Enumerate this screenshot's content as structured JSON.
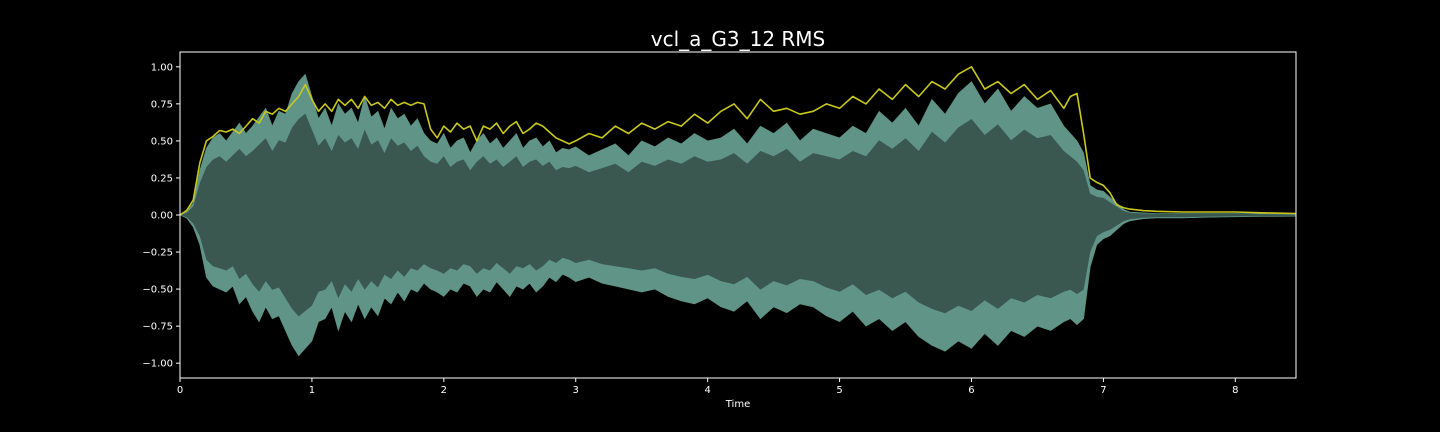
{
  "chart_data": {
    "type": "line",
    "title": "vcl_a_G3_12 RMS",
    "xlabel": "Time",
    "ylabel": "",
    "xlim": [
      0,
      8.46
    ],
    "ylim": [
      -1.1,
      1.1
    ],
    "x_ticks": [
      {
        "value": 0,
        "label": "0"
      },
      {
        "value": 1,
        "label": "1"
      },
      {
        "value": 2,
        "label": "2"
      },
      {
        "value": 3,
        "label": "3"
      },
      {
        "value": 4,
        "label": "4"
      },
      {
        "value": 5,
        "label": "5"
      },
      {
        "value": 6,
        "label": "6"
      },
      {
        "value": 7,
        "label": "7"
      },
      {
        "value": 8,
        "label": "8"
      }
    ],
    "y_ticks": [
      {
        "value": 1.0,
        "label": "1.00"
      },
      {
        "value": 0.75,
        "label": "0.75"
      },
      {
        "value": 0.5,
        "label": "0.50"
      },
      {
        "value": 0.25,
        "label": "0.25"
      },
      {
        "value": 0.0,
        "label": "0.00"
      },
      {
        "value": -0.25,
        "label": "−0.25"
      },
      {
        "value": -0.5,
        "label": "−0.50"
      },
      {
        "value": -0.75,
        "label": "−0.75"
      },
      {
        "value": -1.0,
        "label": "−1.00"
      }
    ],
    "grid": false,
    "colors": {
      "background": "#000000",
      "waveform_fill": "#3a5750",
      "waveform_peaks": "#5f9486",
      "rms_line": "#c8c81e",
      "axes": "#ffffff"
    },
    "series": [
      {
        "kind": "waveform_upper",
        "x": [
          0,
          0.05,
          0.1,
          0.15,
          0.2,
          0.25,
          0.3,
          0.35,
          0.4,
          0.45,
          0.5,
          0.55,
          0.6,
          0.65,
          0.7,
          0.75,
          0.8,
          0.85,
          0.9,
          0.95,
          1.0,
          1.05,
          1.1,
          1.15,
          1.2,
          1.25,
          1.3,
          1.35,
          1.4,
          1.45,
          1.5,
          1.55,
          1.6,
          1.65,
          1.7,
          1.75,
          1.8,
          1.85,
          1.9,
          1.95,
          2.0,
          2.05,
          2.1,
          2.15,
          2.2,
          2.25,
          2.3,
          2.35,
          2.4,
          2.45,
          2.5,
          2.55,
          2.6,
          2.65,
          2.7,
          2.75,
          2.8,
          2.85,
          2.9,
          2.95,
          3.0,
          3.1,
          3.2,
          3.3,
          3.4,
          3.5,
          3.6,
          3.7,
          3.8,
          3.9,
          4.0,
          4.1,
          4.2,
          4.3,
          4.4,
          4.5,
          4.6,
          4.7,
          4.8,
          4.9,
          5.0,
          5.1,
          5.2,
          5.3,
          5.4,
          5.5,
          5.6,
          5.7,
          5.8,
          5.9,
          6.0,
          6.1,
          6.2,
          6.3,
          6.4,
          6.5,
          6.6,
          6.7,
          6.75,
          6.8,
          6.85,
          6.9,
          6.95,
          7.0,
          7.05,
          7.1,
          7.15,
          7.2,
          7.3,
          7.4,
          7.6,
          7.8,
          8.0,
          8.2,
          8.46
        ],
        "values": [
          0.0,
          0.02,
          0.08,
          0.3,
          0.45,
          0.52,
          0.55,
          0.5,
          0.56,
          0.62,
          0.55,
          0.6,
          0.66,
          0.72,
          0.6,
          0.7,
          0.68,
          0.82,
          0.9,
          0.95,
          0.8,
          0.65,
          0.72,
          0.6,
          0.75,
          0.68,
          0.72,
          0.62,
          0.8,
          0.66,
          0.7,
          0.58,
          0.72,
          0.65,
          0.68,
          0.6,
          0.65,
          0.55,
          0.5,
          0.48,
          0.55,
          0.45,
          0.5,
          0.52,
          0.42,
          0.5,
          0.55,
          0.48,
          0.52,
          0.45,
          0.5,
          0.55,
          0.45,
          0.5,
          0.52,
          0.46,
          0.5,
          0.42,
          0.45,
          0.44,
          0.46,
          0.4,
          0.44,
          0.48,
          0.4,
          0.5,
          0.46,
          0.52,
          0.48,
          0.55,
          0.5,
          0.52,
          0.58,
          0.48,
          0.6,
          0.55,
          0.62,
          0.5,
          0.58,
          0.55,
          0.52,
          0.6,
          0.55,
          0.7,
          0.62,
          0.72,
          0.6,
          0.78,
          0.68,
          0.82,
          0.9,
          0.75,
          0.85,
          0.7,
          0.8,
          0.72,
          0.75,
          0.6,
          0.55,
          0.5,
          0.42,
          0.2,
          0.17,
          0.16,
          0.12,
          0.08,
          0.04,
          0.02,
          0.015,
          0.01,
          0.01,
          0.01,
          0.01,
          0.008,
          0.005
        ]
      },
      {
        "kind": "waveform_lower",
        "x": [
          0,
          0.05,
          0.1,
          0.15,
          0.2,
          0.25,
          0.3,
          0.35,
          0.4,
          0.45,
          0.5,
          0.55,
          0.6,
          0.65,
          0.7,
          0.75,
          0.8,
          0.85,
          0.9,
          0.95,
          1.0,
          1.05,
          1.1,
          1.15,
          1.2,
          1.25,
          1.3,
          1.35,
          1.4,
          1.45,
          1.5,
          1.55,
          1.6,
          1.65,
          1.7,
          1.75,
          1.8,
          1.85,
          1.9,
          1.95,
          2.0,
          2.05,
          2.1,
          2.15,
          2.2,
          2.25,
          2.3,
          2.35,
          2.4,
          2.45,
          2.5,
          2.55,
          2.6,
          2.65,
          2.7,
          2.75,
          2.8,
          2.85,
          2.9,
          2.95,
          3.0,
          3.1,
          3.2,
          3.3,
          3.4,
          3.5,
          3.6,
          3.7,
          3.8,
          3.9,
          4.0,
          4.1,
          4.2,
          4.3,
          4.4,
          4.5,
          4.6,
          4.7,
          4.8,
          4.9,
          5.0,
          5.1,
          5.2,
          5.3,
          5.4,
          5.5,
          5.6,
          5.7,
          5.8,
          5.9,
          6.0,
          6.1,
          6.2,
          6.3,
          6.4,
          6.5,
          6.6,
          6.7,
          6.75,
          6.8,
          6.85,
          6.9,
          6.95,
          7.0,
          7.05,
          7.1,
          7.15,
          7.2,
          7.3,
          7.4,
          7.6,
          7.8,
          8.0,
          8.2,
          8.46
        ],
        "values": [
          0.0,
          -0.02,
          -0.08,
          -0.2,
          -0.42,
          -0.48,
          -0.5,
          -0.52,
          -0.48,
          -0.6,
          -0.55,
          -0.65,
          -0.72,
          -0.62,
          -0.7,
          -0.68,
          -0.78,
          -0.88,
          -0.95,
          -0.9,
          -0.85,
          -0.72,
          -0.7,
          -0.62,
          -0.78,
          -0.65,
          -0.72,
          -0.6,
          -0.7,
          -0.62,
          -0.68,
          -0.56,
          -0.6,
          -0.52,
          -0.58,
          -0.5,
          -0.52,
          -0.46,
          -0.5,
          -0.52,
          -0.55,
          -0.5,
          -0.52,
          -0.46,
          -0.48,
          -0.55,
          -0.5,
          -0.52,
          -0.45,
          -0.5,
          -0.55,
          -0.48,
          -0.5,
          -0.46,
          -0.52,
          -0.48,
          -0.42,
          -0.45,
          -0.4,
          -0.42,
          -0.45,
          -0.42,
          -0.46,
          -0.48,
          -0.5,
          -0.52,
          -0.5,
          -0.55,
          -0.58,
          -0.6,
          -0.56,
          -0.62,
          -0.65,
          -0.58,
          -0.7,
          -0.62,
          -0.66,
          -0.6,
          -0.62,
          -0.68,
          -0.72,
          -0.65,
          -0.75,
          -0.7,
          -0.78,
          -0.72,
          -0.82,
          -0.88,
          -0.92,
          -0.85,
          -0.9,
          -0.8,
          -0.88,
          -0.78,
          -0.82,
          -0.75,
          -0.78,
          -0.72,
          -0.7,
          -0.74,
          -0.7,
          -0.35,
          -0.2,
          -0.16,
          -0.14,
          -0.1,
          -0.06,
          -0.04,
          -0.025,
          -0.02,
          -0.02,
          -0.015,
          -0.012,
          -0.01,
          -0.008
        ]
      },
      {
        "kind": "rms",
        "x": [
          0,
          0.05,
          0.1,
          0.15,
          0.2,
          0.25,
          0.3,
          0.35,
          0.4,
          0.45,
          0.5,
          0.55,
          0.6,
          0.65,
          0.7,
          0.75,
          0.8,
          0.85,
          0.9,
          0.95,
          1.0,
          1.05,
          1.1,
          1.15,
          1.2,
          1.25,
          1.3,
          1.35,
          1.4,
          1.45,
          1.5,
          1.55,
          1.6,
          1.65,
          1.7,
          1.75,
          1.8,
          1.85,
          1.9,
          1.95,
          2.0,
          2.05,
          2.1,
          2.15,
          2.2,
          2.25,
          2.3,
          2.35,
          2.4,
          2.45,
          2.5,
          2.55,
          2.6,
          2.65,
          2.7,
          2.75,
          2.8,
          2.85,
          2.9,
          2.95,
          3.0,
          3.1,
          3.2,
          3.3,
          3.4,
          3.5,
          3.6,
          3.7,
          3.8,
          3.9,
          4.0,
          4.1,
          4.2,
          4.3,
          4.4,
          4.5,
          4.6,
          4.7,
          4.8,
          4.9,
          5.0,
          5.1,
          5.2,
          5.3,
          5.4,
          5.5,
          5.6,
          5.7,
          5.8,
          5.9,
          6.0,
          6.1,
          6.2,
          6.3,
          6.4,
          6.5,
          6.6,
          6.7,
          6.75,
          6.8,
          6.85,
          6.9,
          6.95,
          7.0,
          7.05,
          7.1,
          7.15,
          7.2,
          7.3,
          7.4,
          7.6,
          7.8,
          8.0,
          8.2,
          8.46
        ],
        "values": [
          0.0,
          0.03,
          0.1,
          0.35,
          0.5,
          0.53,
          0.57,
          0.56,
          0.58,
          0.55,
          0.6,
          0.65,
          0.62,
          0.7,
          0.68,
          0.72,
          0.7,
          0.75,
          0.8,
          0.88,
          0.78,
          0.7,
          0.75,
          0.7,
          0.78,
          0.74,
          0.78,
          0.72,
          0.8,
          0.74,
          0.76,
          0.72,
          0.78,
          0.74,
          0.76,
          0.74,
          0.76,
          0.75,
          0.58,
          0.52,
          0.6,
          0.56,
          0.62,
          0.58,
          0.6,
          0.5,
          0.6,
          0.58,
          0.62,
          0.55,
          0.6,
          0.63,
          0.55,
          0.58,
          0.62,
          0.6,
          0.56,
          0.52,
          0.5,
          0.48,
          0.5,
          0.55,
          0.52,
          0.6,
          0.55,
          0.62,
          0.58,
          0.63,
          0.6,
          0.68,
          0.62,
          0.7,
          0.75,
          0.65,
          0.78,
          0.7,
          0.72,
          0.68,
          0.7,
          0.75,
          0.72,
          0.8,
          0.75,
          0.85,
          0.78,
          0.88,
          0.8,
          0.9,
          0.85,
          0.95,
          1.0,
          0.85,
          0.9,
          0.82,
          0.88,
          0.78,
          0.84,
          0.72,
          0.8,
          0.82,
          0.55,
          0.25,
          0.22,
          0.2,
          0.15,
          0.07,
          0.05,
          0.04,
          0.03,
          0.025,
          0.02,
          0.02,
          0.02,
          0.015,
          0.01
        ]
      }
    ]
  }
}
